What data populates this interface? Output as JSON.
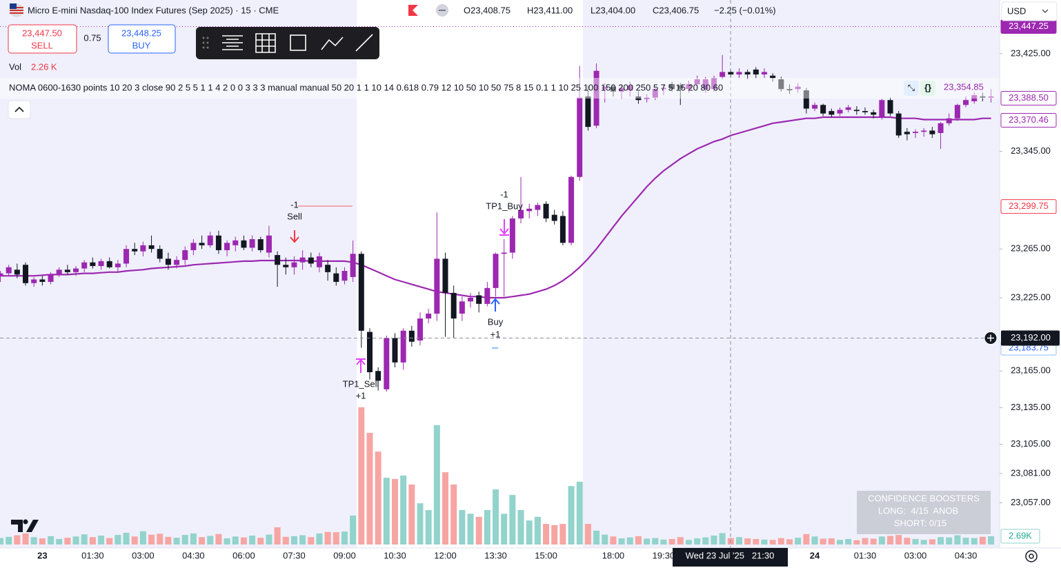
{
  "header": {
    "symbol": "Micro E-mini Nasdaq-100 Index Futures (Sep 2025) · 15 · CME",
    "open": "O23,408.75",
    "high": "H23,411.00",
    "low": "L23,404.00",
    "close": "C23,406.75",
    "change": "−2.25 (−0.01%)"
  },
  "trade": {
    "sell_price": "23,447.50",
    "sell": "SELL",
    "spread": "0.75",
    "buy_price": "23,448.25",
    "buy": "BUY"
  },
  "volume_legend": {
    "label": "Vol",
    "value": "2.26 K"
  },
  "indicator": {
    "text": "NOMA 0600-1630 points 10 20 3 close 90 2 5 5 1 1 4 2 0 0 3 3 3 manual manual 50 20 1 1 10 14 0.618 0.79 12 10 50 10 50 75 8 15 0.1 1 10 25 100 150 200 250 5 7 5 15 20 80 60",
    "value": "23,354.85"
  },
  "currency": "USD",
  "annotations": {
    "sell_qty": "-1",
    "sell": "Sell",
    "tp1_sell": "TP1_Sell",
    "tp1_sell_qty": "+1",
    "tp1_buy_qty": "-1",
    "tp1_buy": "TP1_Buy",
    "buy": "Buy",
    "buy_qty": "+1"
  },
  "confidence": {
    "title": "CONFIDENCE BOOSTERS",
    "long": "LONG:  4/15  ANOB",
    "short": "SHORT: 0/15"
  },
  "chart_data": {
    "type": "candlestick",
    "categories": [
      null,
      null,
      null,
      null,
      null,
      "23",
      null,
      null,
      null,
      null,
      null,
      "01:30",
      null,
      null,
      null,
      null,
      null,
      "03:00",
      null,
      null,
      null,
      null,
      null,
      "04:30",
      null,
      null,
      null,
      null,
      null,
      "06:00",
      null,
      null,
      null,
      null,
      null,
      "07:30",
      null,
      null,
      null,
      null,
      null,
      "09:00",
      null,
      null,
      null,
      null,
      null,
      "10:30",
      null,
      null,
      null,
      null,
      null,
      "12:00",
      null,
      null,
      null,
      null,
      null,
      "13:30",
      null,
      null,
      null,
      null,
      null,
      "15:00",
      null,
      null,
      null,
      null,
      null,
      null,
      null,
      "18:00",
      null,
      null,
      null,
      null,
      null,
      "19:30",
      null,
      null,
      null,
      null,
      null,
      null,
      null,
      null,
      null,
      null,
      null,
      null,
      null,
      null,
      null,
      null,
      null,
      "24",
      null,
      null,
      null,
      null,
      null,
      "01:30",
      null,
      null,
      null,
      null,
      null,
      "03:00",
      null,
      null,
      null,
      null,
      null,
      "04:30",
      null,
      null,
      null
    ],
    "ohlc": [
      [
        23243,
        23247,
        23238,
        23245
      ],
      [
        23245,
        23252,
        23243,
        23250
      ],
      [
        23248,
        23253,
        23241,
        23244
      ],
      [
        23252,
        23254,
        23235,
        23237
      ],
      [
        23237,
        23242,
        23234,
        23240
      ],
      [
        23240,
        23243,
        23235,
        23238
      ],
      [
        23238,
        23246,
        23236,
        23244
      ],
      [
        23244,
        23250,
        23242,
        23248
      ],
      [
        23248,
        23252,
        23244,
        23246
      ],
      [
        23246,
        23251,
        23243,
        23249
      ],
      [
        23249,
        23256,
        23246,
        23254
      ],
      [
        23254,
        23258,
        23249,
        23251
      ],
      [
        23251,
        23257,
        23248,
        23255
      ],
      [
        23255,
        23258,
        23249,
        23250
      ],
      [
        23250,
        23256,
        23246,
        23253
      ],
      [
        23253,
        23268,
        23250,
        23265
      ],
      [
        23265,
        23270,
        23260,
        23263
      ],
      [
        23263,
        23271,
        23259,
        23268
      ],
      [
        23268,
        23276,
        23262,
        23265
      ],
      [
        23265,
        23268,
        23254,
        23257
      ],
      [
        23257,
        23262,
        23248,
        23252
      ],
      [
        23252,
        23259,
        23249,
        23256
      ],
      [
        23256,
        23267,
        23252,
        23264
      ],
      [
        23264,
        23273,
        23260,
        23270
      ],
      [
        23270,
        23276,
        23265,
        23268
      ],
      [
        23268,
        23279,
        23266,
        23276
      ],
      [
        23276,
        23280,
        23261,
        23264
      ],
      [
        23264,
        23272,
        23259,
        23270
      ],
      [
        23268,
        23275,
        23263,
        23272
      ],
      [
        23272,
        23276,
        23264,
        23266
      ],
      [
        23266,
        23276,
        23263,
        23273
      ],
      [
        23273,
        23275,
        23262,
        23264
      ],
      [
        23262,
        23284,
        23258,
        23276
      ],
      [
        23260,
        23263,
        23234,
        23252
      ],
      [
        23252,
        23258,
        23244,
        23250
      ],
      [
        23250,
        23259,
        23244,
        23254
      ],
      [
        23254,
        23264,
        23248,
        23258
      ],
      [
        23258,
        23262,
        23250,
        23253
      ],
      [
        23250,
        23262,
        23246,
        23259
      ],
      [
        23252,
        23256,
        23239,
        23246
      ],
      [
        23245,
        23250,
        23235,
        23238
      ],
      [
        23239,
        23250,
        23236,
        23247
      ],
      [
        23242,
        23272,
        23238,
        23261
      ],
      [
        23261,
        23263,
        23184,
        23198
      ],
      [
        23197,
        23200,
        23158,
        23164
      ],
      [
        23165,
        23168,
        23149,
        23157
      ],
      [
        23150,
        23194,
        23148,
        23192
      ],
      [
        23192,
        23196,
        23168,
        23172
      ],
      [
        23172,
        23200,
        23166,
        23198
      ],
      [
        23198,
        23202,
        23185,
        23189
      ],
      [
        23190,
        23213,
        23186,
        23208
      ],
      [
        23208,
        23216,
        23204,
        23212
      ],
      [
        23212,
        23295,
        23206,
        23257
      ],
      [
        23257,
        23262,
        23193,
        23229
      ],
      [
        23229,
        23235,
        23192,
        23208
      ],
      [
        23212,
        23226,
        23206,
        23222
      ],
      [
        23222,
        23229,
        23217,
        23225
      ],
      [
        23227,
        23230,
        23213,
        23220
      ],
      [
        23220,
        23238,
        23218,
        23233
      ],
      [
        23233,
        23262,
        23226,
        23261
      ],
      [
        23261,
        23273,
        23226,
        23262
      ],
      [
        23262,
        23292,
        23257,
        23290
      ],
      [
        23290,
        23324,
        23286,
        23297
      ],
      [
        23296,
        23302,
        23290,
        23298
      ],
      [
        23297,
        23303,
        23292,
        23301
      ],
      [
        23302,
        23304,
        23287,
        23290
      ],
      [
        23293,
        23297,
        23285,
        23288
      ],
      [
        23292,
        23296,
        23268,
        23270
      ],
      [
        23270,
        23325,
        23268,
        23324
      ],
      [
        23324,
        23415,
        23321,
        23389
      ],
      [
        23390,
        23399,
        23362,
        23365
      ],
      [
        23366,
        23417,
        23364,
        23411
      ],
      [
        23396,
        23401,
        23385,
        23398
      ],
      [
        23398,
        23400,
        23390,
        23394
      ],
      [
        23394,
        23400,
        23388,
        23397
      ],
      [
        23395,
        23402,
        23390,
        23399
      ],
      [
        23390,
        23394,
        23384,
        23387
      ],
      [
        23388,
        23392,
        23385,
        23389
      ],
      [
        23389,
        23398,
        23387,
        23396
      ],
      [
        23396,
        23400,
        23391,
        23397
      ],
      [
        23400,
        23402,
        23394,
        23396
      ],
      [
        23399,
        23401,
        23383,
        23396
      ],
      [
        23396,
        23403,
        23393,
        23400
      ],
      [
        23400,
        23407,
        23397,
        23404
      ],
      [
        23396,
        23406,
        23393,
        23404
      ],
      [
        23396,
        23407,
        23394,
        23405
      ],
      [
        23406,
        23424,
        23404,
        23410
      ],
      [
        23410,
        23412,
        23406,
        23408
      ],
      [
        23408,
        23413,
        23405,
        23410
      ],
      [
        23410,
        23412,
        23404,
        23408
      ],
      [
        23412,
        23414,
        23405,
        23408
      ],
      [
        23408,
        23413,
        23405,
        23410
      ],
      [
        23407,
        23409,
        23402,
        23405
      ],
      [
        23404,
        23406,
        23394,
        23396
      ],
      [
        23396,
        23400,
        23392,
        23395
      ],
      [
        23396,
        23401,
        23393,
        23398
      ],
      [
        23395,
        23397,
        23376,
        23380
      ],
      [
        23380,
        23385,
        23378,
        23383
      ],
      [
        23383,
        23384,
        23374,
        23376
      ],
      [
        23378,
        23380,
        23373,
        23375
      ],
      [
        23376,
        23381,
        23374,
        23379
      ],
      [
        23379,
        23383,
        23377,
        23381
      ],
      [
        23379,
        23382,
        23375,
        23378
      ],
      [
        23378,
        23381,
        23375,
        23377
      ],
      [
        23377,
        23379,
        23372,
        23375
      ],
      [
        23373,
        23388,
        23371,
        23387
      ],
      [
        23387,
        23389,
        23374,
        23376
      ],
      [
        23376,
        23378,
        23356,
        23358
      ],
      [
        23361,
        23364,
        23354,
        23359
      ],
      [
        23360,
        23363,
        23356,
        23361
      ],
      [
        23361,
        23364,
        23357,
        23362
      ],
      [
        23362,
        23365,
        23356,
        23359
      ],
      [
        23360,
        23369,
        23347,
        23368
      ],
      [
        23368,
        23376,
        23366,
        23372
      ],
      [
        23372,
        23384,
        23370,
        23383
      ],
      [
        23383,
        23390,
        23381,
        23387
      ],
      [
        23386,
        23393,
        23384,
        23391
      ],
      [
        23390,
        23393,
        23386,
        23389
      ],
      [
        23389,
        23396,
        23385,
        23390
      ]
    ],
    "volume": [
      2100,
      2500,
      3000,
      3600,
      2400,
      2000,
      2700,
      1800,
      2200,
      2600,
      3300,
      2400,
      2900,
      2100,
      3100,
      3800,
      2600,
      4300,
      3200,
      3500,
      2500,
      2200,
      3100,
      3600,
      2400,
      2800,
      3400,
      2000,
      2600,
      2300,
      2900,
      2200,
      3200,
      5600,
      2500,
      2700,
      3000,
      2400,
      3600,
      4100,
      4000,
      4200,
      9400,
      44600,
      36300,
      30200,
      21700,
      21300,
      22400,
      19500,
      13400,
      11200,
      38800,
      23500,
      19500,
      11200,
      10000,
      9000,
      11200,
      17900,
      10000,
      16100,
      11200,
      7800,
      9000,
      6700,
      6300,
      6700,
      19000,
      20400,
      6700,
      4500,
      3200,
      2600,
      2000,
      2300,
      2700,
      1900,
      2100,
      1600,
      1800,
      2400,
      1500,
      2000,
      2300,
      2900,
      3700,
      2100,
      2400,
      2000,
      1800,
      1600,
      1500,
      2100,
      1700,
      2200,
      3400,
      2600,
      1900,
      2000,
      1500,
      1800,
      1400,
      2100,
      1900,
      2600,
      2800,
      3100,
      2200,
      1800,
      1500,
      1700,
      2400,
      2300,
      3000,
      2200,
      2100,
      2500,
      2690
    ],
    "ma": [
      23243,
      23243,
      23243,
      23243,
      23243,
      23243.5,
      23244,
      23244,
      23244,
      23244.5,
      23245,
      23245,
      23245.5,
      23246,
      23246,
      23247,
      23247.5,
      23248,
      23249,
      23249.5,
      23250,
      23250.5,
      23251,
      23252,
      23252.5,
      23253,
      23253.5,
      23254,
      23254.5,
      23255,
      23255,
      23255.5,
      23255.5,
      23255.5,
      23255.5,
      23255.5,
      23255.5,
      23255,
      23255,
      23255,
      23255,
      23255,
      23254,
      23252,
      23249,
      23246,
      23243,
      23240,
      23238,
      23236,
      23234,
      23232,
      23230,
      23229,
      23228,
      23227,
      23226,
      23226,
      23225,
      23225,
      23225,
      23226,
      23227,
      23228,
      23230,
      23232,
      23235,
      23239,
      23244,
      23250,
      23257,
      23265,
      23274,
      23283,
      23292,
      23300,
      23308,
      23316,
      23323,
      23329,
      23334,
      23339,
      23343,
      23347,
      23350,
      23353,
      23355,
      23358,
      23360,
      23362,
      23364,
      23366,
      23368,
      23369,
      23370,
      23371,
      23372,
      23372,
      23373,
      23373,
      23373,
      23373,
      23373,
      23373,
      23373,
      23373,
      23373,
      23372,
      23372,
      23372,
      23371,
      23371,
      23371,
      23371,
      23371,
      23371,
      23371,
      23372,
      23372
    ],
    "up_color": "#9c27b0",
    "down_color": "#131722",
    "volume_up_color": "#92d3cc",
    "volume_down_color": "#f7a5a3",
    "ma_color": "#9c27b0",
    "ylim": [
      23020,
      23469
    ],
    "yticks": [
      {
        "value": 23425,
        "label": "23,425.00"
      },
      {
        "value": 23345,
        "label": "23,345.00"
      },
      {
        "value": 23265,
        "label": "23,265.00"
      },
      {
        "value": 23225,
        "label": "23,225.00"
      },
      {
        "value": 23165,
        "label": "23,165.00"
      },
      {
        "value": 23135,
        "label": "23,135.00"
      },
      {
        "value": 23105,
        "label": "23,105.00"
      },
      {
        "value": 23081,
        "label": "23,081.00"
      },
      {
        "value": 23057,
        "label": "23,057.00"
      }
    ],
    "price_labels": [
      {
        "value": 23447.25,
        "label": "23,447.25",
        "color": "#9c27b0",
        "filled": true
      },
      {
        "value": 23388.5,
        "label": "23,388.50",
        "color": "#9c27b0",
        "filled": false
      },
      {
        "value": 23370.46,
        "label": "23,370.46",
        "color": "#9c27b0",
        "filled": false
      },
      {
        "value": 23299.75,
        "label": "23,299.75",
        "color": "#f23645",
        "filled": false
      },
      {
        "value": 23183.75,
        "label": "23,183.75",
        "color": "#90bff9",
        "filled": false
      }
    ],
    "crosshair": {
      "price": {
        "value": 23192,
        "label": "23,192.00"
      },
      "time": "Wed 23 Jul '25   21:30"
    },
    "volume_lim": [
      0,
      177000
    ],
    "volume_label": {
      "value": 2690,
      "label": "2.69K"
    }
  }
}
